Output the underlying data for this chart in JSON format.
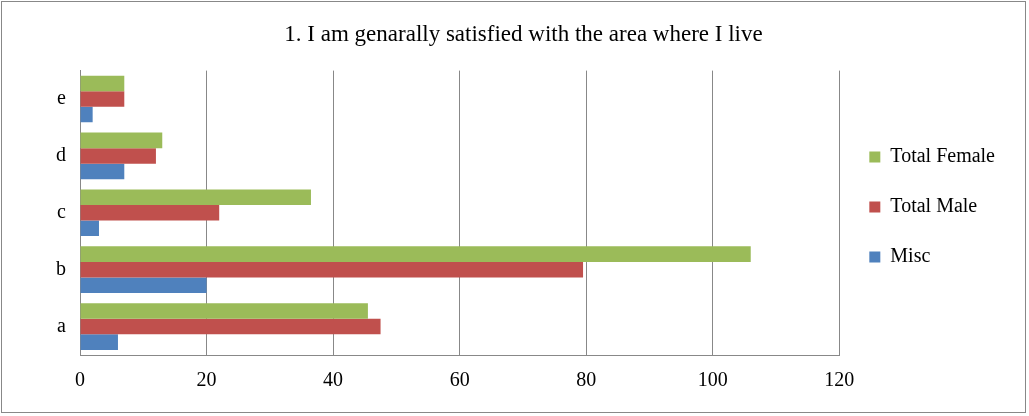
{
  "chart_data": {
    "type": "bar",
    "orientation": "horizontal",
    "title": "1. I am genarally satisfied with the area where I live",
    "categories": [
      "e",
      "d",
      "c",
      "b",
      "a"
    ],
    "series": [
      {
        "name": "Total Female",
        "color": "#9bbb59",
        "values": [
          7,
          13,
          36.5,
          106,
          45.5
        ]
      },
      {
        "name": "Total Male",
        "color": "#c0504d",
        "values": [
          7,
          12,
          22,
          79.5,
          47.5
        ]
      },
      {
        "name": "Misc",
        "color": "#4f81bd",
        "values": [
          2,
          7,
          3,
          20,
          6
        ]
      }
    ],
    "xlim": [
      0,
      120
    ],
    "xticks": [
      0,
      20,
      40,
      60,
      80,
      100,
      120
    ],
    "grid": "x",
    "legend": "right"
  }
}
